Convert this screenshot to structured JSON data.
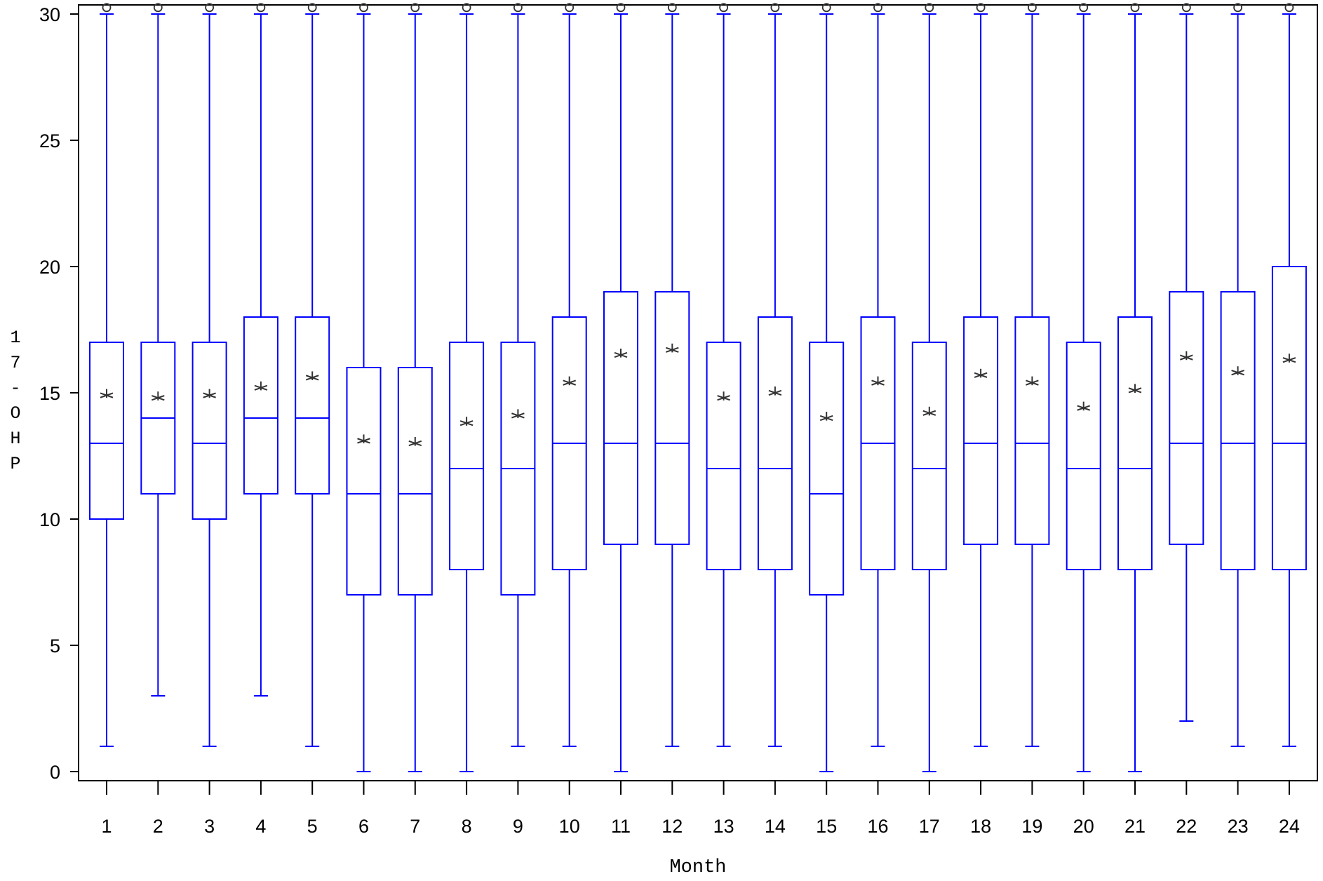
{
  "chart_data": {
    "type": "box",
    "xlabel": "Month",
    "ylabel": "17-OHP",
    "ylim": [
      0,
      30
    ],
    "y_ticks": [
      0,
      5,
      10,
      15,
      20,
      25,
      30
    ],
    "grid": false,
    "colors": {
      "box": "#0000ff",
      "mean": "#333333",
      "outlier": "#333333",
      "axis": "#000000"
    },
    "categories": [
      "1",
      "2",
      "3",
      "4",
      "5",
      "6",
      "7",
      "8",
      "9",
      "10",
      "11",
      "12",
      "13",
      "14",
      "15",
      "16",
      "17",
      "18",
      "19",
      "20",
      "21",
      "22",
      "23",
      "24"
    ],
    "boxes": [
      {
        "month": "1",
        "whisker_low": 1,
        "q1": 10,
        "median": 13,
        "q3": 17,
        "whisker_high": 30,
        "mean": 14.9,
        "outlier": 30.2
      },
      {
        "month": "2",
        "whisker_low": 3,
        "q1": 11,
        "median": 14,
        "q3": 17,
        "whisker_high": 30,
        "mean": 14.8,
        "outlier": 30.2
      },
      {
        "month": "3",
        "whisker_low": 1,
        "q1": 10,
        "median": 13,
        "q3": 17,
        "whisker_high": 30,
        "mean": 14.9,
        "outlier": 30.2
      },
      {
        "month": "4",
        "whisker_low": 3,
        "q1": 11,
        "median": 14,
        "q3": 18,
        "whisker_high": 30,
        "mean": 15.2,
        "outlier": 30.2
      },
      {
        "month": "5",
        "whisker_low": 1,
        "q1": 11,
        "median": 14,
        "q3": 18,
        "whisker_high": 30,
        "mean": 15.6,
        "outlier": 30.2
      },
      {
        "month": "6",
        "whisker_low": 0,
        "q1": 7,
        "median": 11,
        "q3": 16,
        "whisker_high": 30,
        "mean": 13.1,
        "outlier": 30.2
      },
      {
        "month": "7",
        "whisker_low": 0,
        "q1": 7,
        "median": 11,
        "q3": 16,
        "whisker_high": 30,
        "mean": 13.0,
        "outlier": 30.2
      },
      {
        "month": "8",
        "whisker_low": 0,
        "q1": 8,
        "median": 12,
        "q3": 17,
        "whisker_high": 30,
        "mean": 13.8,
        "outlier": 30.2
      },
      {
        "month": "9",
        "whisker_low": 1,
        "q1": 7,
        "median": 12,
        "q3": 17,
        "whisker_high": 30,
        "mean": 14.1,
        "outlier": 30.2
      },
      {
        "month": "10",
        "whisker_low": 1,
        "q1": 8,
        "median": 13,
        "q3": 18,
        "whisker_high": 30,
        "mean": 15.4,
        "outlier": 30.2
      },
      {
        "month": "11",
        "whisker_low": 0,
        "q1": 9,
        "median": 13,
        "q3": 19,
        "whisker_high": 30,
        "mean": 16.5,
        "outlier": 30.2
      },
      {
        "month": "12",
        "whisker_low": 1,
        "q1": 9,
        "median": 13,
        "q3": 19,
        "whisker_high": 30,
        "mean": 16.7,
        "outlier": 30.2
      },
      {
        "month": "13",
        "whisker_low": 1,
        "q1": 8,
        "median": 12,
        "q3": 17,
        "whisker_high": 30,
        "mean": 14.8,
        "outlier": 30.2
      },
      {
        "month": "14",
        "whisker_low": 1,
        "q1": 8,
        "median": 12,
        "q3": 18,
        "whisker_high": 30,
        "mean": 15.0,
        "outlier": 30.2
      },
      {
        "month": "15",
        "whisker_low": 0,
        "q1": 7,
        "median": 11,
        "q3": 17,
        "whisker_high": 30,
        "mean": 14.0,
        "outlier": 30.2
      },
      {
        "month": "16",
        "whisker_low": 1,
        "q1": 8,
        "median": 13,
        "q3": 18,
        "whisker_high": 30,
        "mean": 15.4,
        "outlier": 30.2
      },
      {
        "month": "17",
        "whisker_low": 0,
        "q1": 8,
        "median": 12,
        "q3": 17,
        "whisker_high": 30,
        "mean": 14.2,
        "outlier": 30.2
      },
      {
        "month": "18",
        "whisker_low": 1,
        "q1": 9,
        "median": 13,
        "q3": 18,
        "whisker_high": 30,
        "mean": 15.7,
        "outlier": 30.2
      },
      {
        "month": "19",
        "whisker_low": 1,
        "q1": 9,
        "median": 13,
        "q3": 18,
        "whisker_high": 30,
        "mean": 15.4,
        "outlier": 30.2
      },
      {
        "month": "20",
        "whisker_low": 0,
        "q1": 8,
        "median": 12,
        "q3": 17,
        "whisker_high": 30,
        "mean": 14.4,
        "outlier": 30.2
      },
      {
        "month": "21",
        "whisker_low": 0,
        "q1": 8,
        "median": 12,
        "q3": 18,
        "whisker_high": 30,
        "mean": 15.1,
        "outlier": 30.2
      },
      {
        "month": "22",
        "whisker_low": 2,
        "q1": 9,
        "median": 13,
        "q3": 19,
        "whisker_high": 30,
        "mean": 16.4,
        "outlier": 30.2
      },
      {
        "month": "23",
        "whisker_low": 1,
        "q1": 8,
        "median": 13,
        "q3": 19,
        "whisker_high": 30,
        "mean": 15.8,
        "outlier": 30.2
      },
      {
        "month": "24",
        "whisker_low": 1,
        "q1": 8,
        "median": 13,
        "q3": 20,
        "whisker_high": 30,
        "mean": 16.3,
        "outlier": 30.2
      }
    ]
  }
}
